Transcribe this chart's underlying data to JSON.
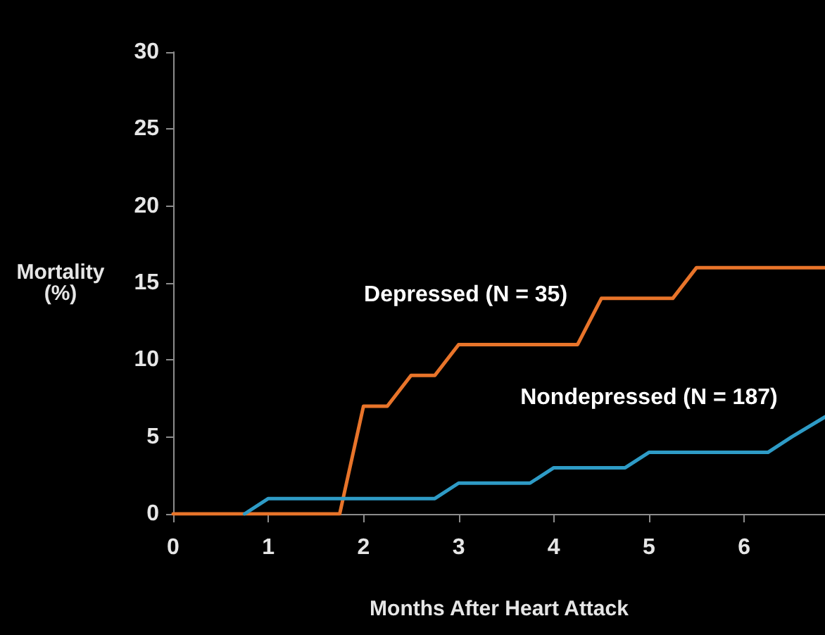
{
  "chart_data": {
    "type": "line",
    "xlabel": "Months After Heart Attack",
    "ylabel": "Mortality\n(%)",
    "xlim": [
      0,
      6.85
    ],
    "xticks": [
      0,
      1,
      2,
      3,
      4,
      5,
      6
    ],
    "ylim": [
      0,
      30
    ],
    "yticks": [
      0,
      5,
      10,
      15,
      20,
      25,
      30
    ],
    "grid": false,
    "legend": false,
    "marker": "none",
    "line_style": "solid",
    "series": [
      {
        "name": "Depressed (N = 35)",
        "color": "#e8742a",
        "x": [
          0,
          1.75,
          2,
          2.25,
          2.5,
          2.75,
          3,
          4.25,
          4.5,
          5.25,
          5.5,
          6.85
        ],
        "values": [
          0,
          0,
          7,
          7,
          9,
          9,
          11,
          11,
          14,
          14,
          16,
          16
        ]
      },
      {
        "name": "Nondepressed (N = 187)",
        "color": "#2e9bc6",
        "x": [
          0.75,
          1,
          2.75,
          3,
          3.75,
          4,
          4.75,
          5,
          6.25,
          6.5,
          6.85
        ],
        "values": [
          0,
          1,
          1,
          2,
          2,
          3,
          3,
          4,
          4,
          5,
          6.3
        ]
      }
    ]
  }
}
